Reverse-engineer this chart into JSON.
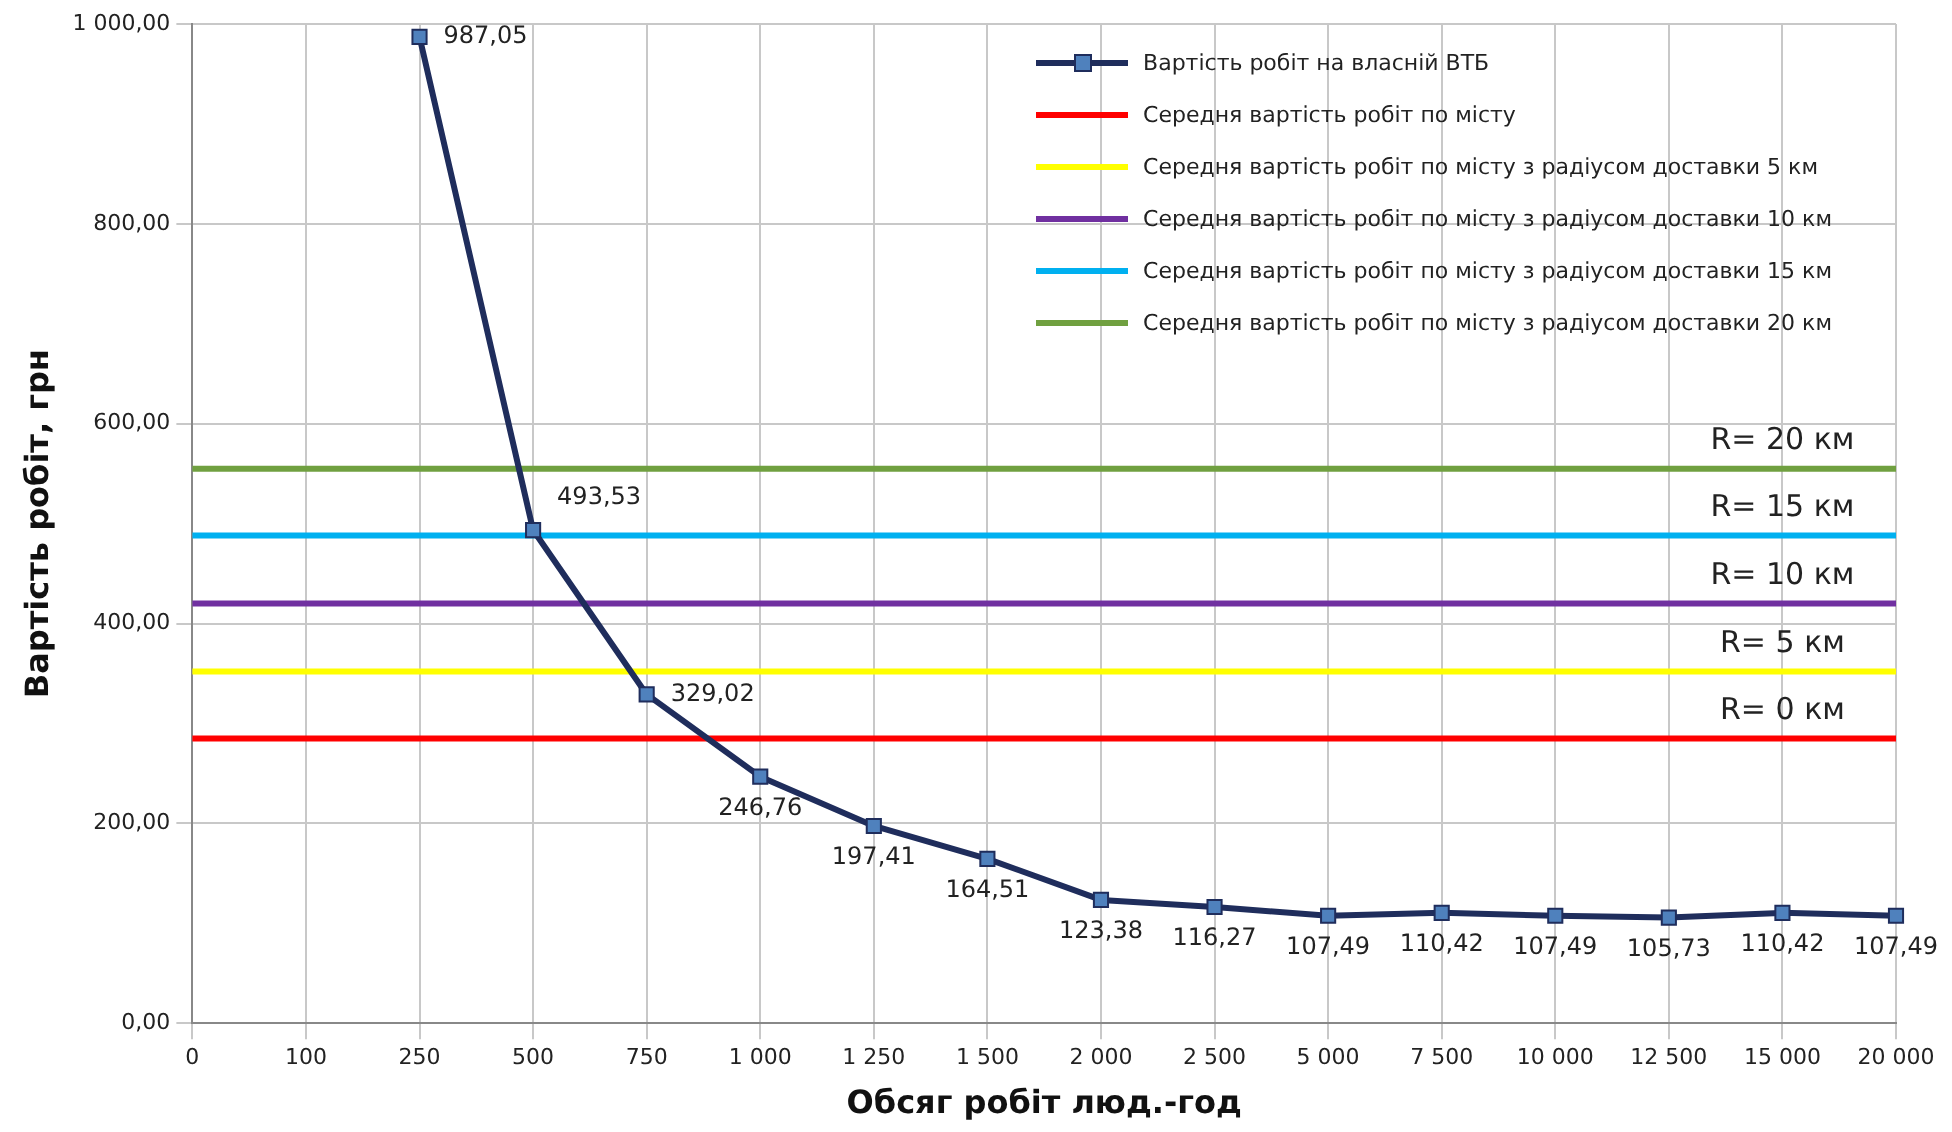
{
  "chart_data": {
    "type": "line",
    "xlabel": "Обсяг робіт люд.-год",
    "ylabel": "Вартість робіт, грн",
    "categories": [
      "0",
      "100",
      "250",
      "500",
      "750",
      "1 000",
      "1 250",
      "1 500",
      "2 000",
      "2 500",
      "5 000",
      "7 500",
      "10 000",
      "12 500",
      "15 000",
      "20 000"
    ],
    "series": [
      {
        "name": "Вартість робіт на власній ВТБ",
        "color": "#1f2d5c",
        "marker": "square",
        "values": [
          null,
          null,
          987.05,
          493.53,
          329.02,
          246.76,
          197.41,
          164.51,
          123.38,
          116.27,
          107.49,
          110.42,
          107.49,
          105.73,
          110.42,
          107.49
        ],
        "value_labels": [
          null,
          null,
          "987,05",
          "493,53",
          "329,02",
          "246,76",
          "197,41",
          "164,51",
          "123,38",
          "116,27",
          "107,49",
          "110,42",
          "107,49",
          "105,73",
          "110,42",
          "107,49"
        ]
      },
      {
        "name": "Середня вартість робіт по місту",
        "color": "#ff0000",
        "marker": "none",
        "values": [
          285,
          285,
          285,
          285,
          285,
          285,
          285,
          285,
          285,
          285,
          285,
          285,
          285,
          285,
          285,
          285
        ]
      },
      {
        "name": "Середня вартість робіт по місту з радіусом доставки 5  км",
        "color": "#ffff00",
        "marker": "none",
        "values": [
          352,
          352,
          352,
          352,
          352,
          352,
          352,
          352,
          352,
          352,
          352,
          352,
          352,
          352,
          352,
          352
        ]
      },
      {
        "name": "Середня вартість робіт по місту з радіусом доставки 10  км",
        "color": "#7030a0",
        "marker": "none",
        "values": [
          420,
          420,
          420,
          420,
          420,
          420,
          420,
          420,
          420,
          420,
          420,
          420,
          420,
          420,
          420,
          420
        ]
      },
      {
        "name": "Середня вартість робіт по місту з радіусом доставки 15  км",
        "color": "#00b0f0",
        "marker": "none",
        "values": [
          488,
          488,
          488,
          488,
          488,
          488,
          488,
          488,
          488,
          488,
          488,
          488,
          488,
          488,
          488,
          488
        ]
      },
      {
        "name": "Середня вартість робіт по місту з радіусом доставки 20  км",
        "color": "#70a040",
        "marker": "none",
        "values": [
          555,
          555,
          555,
          555,
          555,
          555,
          555,
          555,
          555,
          555,
          555,
          555,
          555,
          555,
          555,
          555
        ]
      }
    ],
    "ylim": [
      0,
      1000
    ],
    "yticks": [
      {
        "value": 0,
        "label": "0,00"
      },
      {
        "value": 200,
        "label": "200,00"
      },
      {
        "value": 400,
        "label": "400,00"
      },
      {
        "value": 600,
        "label": "600,00"
      },
      {
        "value": 800,
        "label": "800,00"
      },
      {
        "value": 1000,
        "label": "1 000,00"
      }
    ],
    "annotations": [
      {
        "text": "R= 0 км",
        "x": "15 000",
        "y": 285
      },
      {
        "text": "R= 5 км",
        "x": "15 000",
        "y": 352
      },
      {
        "text": "R= 10 км",
        "x": "15 000",
        "y": 420
      },
      {
        "text": "R= 15 км",
        "x": "15 000",
        "y": 488
      },
      {
        "text": "R= 20 км",
        "x": "15 000",
        "y": 555
      }
    ],
    "grid": true,
    "legend": "top right",
    "line_style": "solid"
  }
}
